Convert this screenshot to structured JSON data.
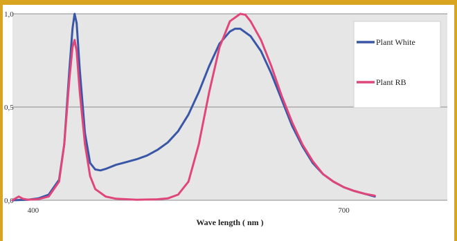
{
  "chart_data": {
    "type": "line",
    "xlabel": "Wave length ( nm )",
    "ylabel": "",
    "xlim": [
      380,
      800
    ],
    "ylim": [
      0,
      1
    ],
    "grid": true,
    "legend_position": "right",
    "x_ticks": [
      {
        "value": 400,
        "label": "400"
      },
      {
        "value": 700,
        "label": "700"
      }
    ],
    "y_ticks": [
      {
        "value": 0,
        "label": "0,0"
      },
      {
        "value": 0.5,
        "label": "0,5"
      },
      {
        "value": 1,
        "label": "1,0"
      }
    ],
    "colors": {
      "plot_bg": "#e6e6e6",
      "grid": "#8c8c8c",
      "white": "#3a56a7",
      "rb": "#e0467a"
    },
    "series": [
      {
        "name": "Plant White",
        "color": "#3a56a7",
        "points": [
          [
            380,
            0
          ],
          [
            395,
            0.003
          ],
          [
            405,
            0.01
          ],
          [
            415,
            0.03
          ],
          [
            425,
            0.11
          ],
          [
            430,
            0.3
          ],
          [
            435,
            0.7
          ],
          [
            438,
            0.92
          ],
          [
            440,
            1.0
          ],
          [
            442,
            0.95
          ],
          [
            445,
            0.7
          ],
          [
            450,
            0.36
          ],
          [
            455,
            0.2
          ],
          [
            460,
            0.165
          ],
          [
            465,
            0.16
          ],
          [
            470,
            0.168
          ],
          [
            480,
            0.19
          ],
          [
            490,
            0.205
          ],
          [
            500,
            0.22
          ],
          [
            510,
            0.24
          ],
          [
            520,
            0.27
          ],
          [
            530,
            0.31
          ],
          [
            540,
            0.37
          ],
          [
            550,
            0.46
          ],
          [
            560,
            0.58
          ],
          [
            570,
            0.72
          ],
          [
            580,
            0.84
          ],
          [
            590,
            0.905
          ],
          [
            595,
            0.92
          ],
          [
            600,
            0.92
          ],
          [
            610,
            0.88
          ],
          [
            620,
            0.8
          ],
          [
            630,
            0.68
          ],
          [
            640,
            0.54
          ],
          [
            650,
            0.4
          ],
          [
            660,
            0.29
          ],
          [
            670,
            0.2
          ],
          [
            680,
            0.14
          ],
          [
            690,
            0.1
          ],
          [
            700,
            0.07
          ],
          [
            710,
            0.05
          ],
          [
            720,
            0.035
          ],
          [
            730,
            0.02
          ]
        ]
      },
      {
        "name": "Plant RB",
        "color": "#e0467a",
        "points": [
          [
            380,
            0
          ],
          [
            383,
            0.01
          ],
          [
            386,
            0.02
          ],
          [
            390,
            0.008
          ],
          [
            395,
            0.003
          ],
          [
            405,
            0.006
          ],
          [
            415,
            0.02
          ],
          [
            425,
            0.1
          ],
          [
            430,
            0.3
          ],
          [
            435,
            0.65
          ],
          [
            438,
            0.82
          ],
          [
            440,
            0.86
          ],
          [
            442,
            0.8
          ],
          [
            445,
            0.58
          ],
          [
            450,
            0.3
          ],
          [
            455,
            0.13
          ],
          [
            460,
            0.06
          ],
          [
            470,
            0.02
          ],
          [
            480,
            0.008
          ],
          [
            500,
            0.003
          ],
          [
            520,
            0.005
          ],
          [
            530,
            0.01
          ],
          [
            540,
            0.03
          ],
          [
            550,
            0.1
          ],
          [
            560,
            0.3
          ],
          [
            570,
            0.58
          ],
          [
            580,
            0.82
          ],
          [
            590,
            0.96
          ],
          [
            600,
            1.0
          ],
          [
            605,
            0.995
          ],
          [
            610,
            0.96
          ],
          [
            620,
            0.86
          ],
          [
            630,
            0.72
          ],
          [
            640,
            0.56
          ],
          [
            650,
            0.42
          ],
          [
            660,
            0.3
          ],
          [
            670,
            0.21
          ],
          [
            680,
            0.14
          ],
          [
            690,
            0.1
          ],
          [
            700,
            0.07
          ],
          [
            710,
            0.05
          ],
          [
            720,
            0.035
          ],
          [
            730,
            0.025
          ]
        ]
      }
    ]
  }
}
